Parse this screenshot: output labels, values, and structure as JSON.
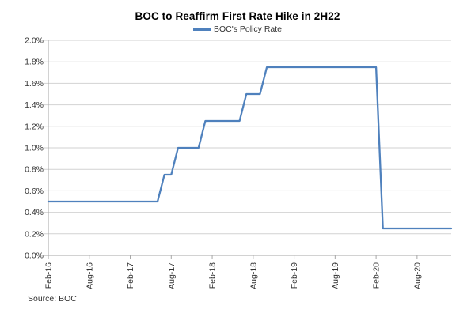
{
  "colors": {
    "line": "#4F81BD",
    "gridline": "#D2D2D2",
    "axis": "#A6A6A6",
    "text": "#333333",
    "title_text": "#000000"
  },
  "chart_data": {
    "type": "line",
    "title": "BOC to Reaffirm First Rate Hike in 2H22",
    "legend_label": "BOC's Policy Rate",
    "legend_position": "top-center",
    "source": "Source: BOC",
    "grid": "horizontal",
    "ylim": [
      0,
      2.0
    ],
    "y_tick_step": 0.2,
    "y_tick_labels": [
      "2.0%",
      "1.8%",
      "1.6%",
      "1.4%",
      "1.2%",
      "1.0%",
      "0.8%",
      "0.6%",
      "0.4%",
      "0.2%",
      "0.0%"
    ],
    "x_tick_labels": [
      "Feb-16",
      "Aug-16",
      "Feb-17",
      "Aug-17",
      "Feb-18",
      "Aug-18",
      "Feb-19",
      "Aug-19",
      "Feb-20",
      "Aug-20"
    ],
    "x_tick_every": 6,
    "x_tick_rotation": -90,
    "x": [
      "Feb-16",
      "Mar-16",
      "Apr-16",
      "May-16",
      "Jun-16",
      "Jul-16",
      "Aug-16",
      "Sep-16",
      "Oct-16",
      "Nov-16",
      "Dec-16",
      "Jan-17",
      "Feb-17",
      "Mar-17",
      "Apr-17",
      "May-17",
      "Jun-17",
      "Jul-17",
      "Aug-17",
      "Sep-17",
      "Oct-17",
      "Nov-17",
      "Dec-17",
      "Jan-18",
      "Feb-18",
      "Mar-18",
      "Apr-18",
      "May-18",
      "Jun-18",
      "Jul-18",
      "Aug-18",
      "Sep-18",
      "Oct-18",
      "Nov-18",
      "Dec-18",
      "Jan-19",
      "Feb-19",
      "Mar-19",
      "Apr-19",
      "May-19",
      "Jun-19",
      "Jul-19",
      "Aug-19",
      "Sep-19",
      "Oct-19",
      "Nov-19",
      "Dec-19",
      "Jan-20",
      "Feb-20",
      "Mar-20",
      "Apr-20",
      "May-20",
      "Jun-20",
      "Jul-20",
      "Aug-20",
      "Sep-20",
      "Oct-20",
      "Nov-20",
      "Dec-20",
      "Jan-21"
    ],
    "series": [
      {
        "name": "BOC's Policy Rate",
        "unit": "%",
        "values": [
          0.5,
          0.5,
          0.5,
          0.5,
          0.5,
          0.5,
          0.5,
          0.5,
          0.5,
          0.5,
          0.5,
          0.5,
          0.5,
          0.5,
          0.5,
          0.5,
          0.5,
          0.75,
          0.75,
          1.0,
          1.0,
          1.0,
          1.0,
          1.25,
          1.25,
          1.25,
          1.25,
          1.25,
          1.25,
          1.5,
          1.5,
          1.5,
          1.75,
          1.75,
          1.75,
          1.75,
          1.75,
          1.75,
          1.75,
          1.75,
          1.75,
          1.75,
          1.75,
          1.75,
          1.75,
          1.75,
          1.75,
          1.75,
          1.75,
          0.25,
          0.25,
          0.25,
          0.25,
          0.25,
          0.25,
          0.25,
          0.25,
          0.25,
          0.25,
          0.25
        ]
      }
    ]
  }
}
